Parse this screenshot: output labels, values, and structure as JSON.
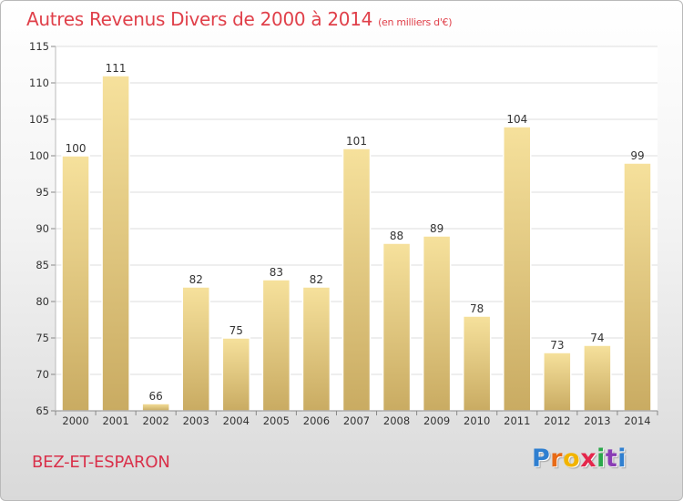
{
  "header": {
    "title": "Autres Revenus Divers de 2000 à 2014",
    "subtitle": "(en milliers d'€)"
  },
  "footer": {
    "commune": "BEZ-ET-ESPARON",
    "logo_letters": [
      "P",
      "r",
      "o",
      "x",
      "i",
      "t",
      "i"
    ]
  },
  "colors": {
    "title": "#e0404a",
    "commune": "#d9304a",
    "bar_light": "#f6e19c",
    "bar_dark": "#c9ab62"
  },
  "chart_data": {
    "type": "bar",
    "categories": [
      "2000",
      "2001",
      "2002",
      "2003",
      "2004",
      "2005",
      "2006",
      "2007",
      "2008",
      "2009",
      "2010",
      "2011",
      "2012",
      "2013",
      "2014"
    ],
    "values": [
      100,
      111,
      66,
      82,
      75,
      83,
      82,
      101,
      88,
      89,
      78,
      104,
      73,
      74,
      99
    ],
    "title": "Autres Revenus Divers de 2000 à 2014",
    "subtitle": "(en milliers d'€)",
    "xlabel": "",
    "ylabel": "",
    "ylim": [
      65,
      115
    ],
    "yticks": [
      65,
      70,
      75,
      80,
      85,
      90,
      95,
      100,
      105,
      110,
      115
    ],
    "grid": true,
    "legend": "none"
  }
}
